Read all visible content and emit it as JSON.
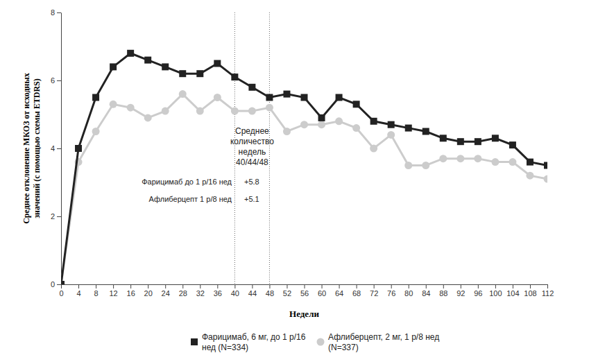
{
  "chart_data": {
    "type": "line",
    "x_label": "Недели",
    "y_label": "Среднее отклонение МКОЗ от исходных значений (с помощью схемы ETDRS)",
    "x": [
      0,
      4,
      8,
      12,
      16,
      20,
      24,
      28,
      32,
      36,
      40,
      44,
      48,
      52,
      56,
      60,
      64,
      68,
      72,
      76,
      80,
      84,
      88,
      92,
      96,
      100,
      104,
      108,
      112
    ],
    "series": [
      {
        "name": "Фарицимаб, 6 мг, до 1 р/16 нед (N=334)",
        "color": "#222222",
        "marker": "square",
        "values": [
          0,
          4.0,
          5.5,
          6.4,
          6.8,
          6.6,
          6.4,
          6.2,
          6.2,
          6.5,
          6.1,
          5.8,
          5.5,
          5.6,
          5.5,
          4.9,
          5.5,
          5.3,
          4.8,
          4.7,
          4.6,
          4.5,
          4.3,
          4.2,
          4.2,
          4.3,
          4.1,
          3.6,
          3.5
        ]
      },
      {
        "name": "Афлиберцепт, 2 мг, 1 р/8 нед (N=337)",
        "color": "#cccccc",
        "marker": "circle",
        "values": [
          0,
          3.6,
          4.5,
          5.3,
          5.2,
          4.9,
          5.1,
          5.6,
          5.1,
          5.5,
          5.1,
          5.1,
          5.2,
          4.5,
          4.7,
          4.7,
          4.8,
          4.6,
          4.0,
          4.4,
          3.5,
          3.5,
          3.7,
          3.7,
          3.7,
          3.6,
          3.6,
          3.2,
          3.1
        ]
      }
    ],
    "xlim": [
      0,
      112
    ],
    "xticks": [
      0,
      4,
      8,
      12,
      16,
      20,
      24,
      28,
      32,
      36,
      40,
      44,
      48,
      52,
      56,
      60,
      64,
      68,
      72,
      76,
      80,
      84,
      88,
      92,
      96,
      100,
      104,
      108,
      112
    ],
    "ylim": [
      0,
      8
    ],
    "yticks": [
      0,
      2,
      4,
      6,
      8
    ],
    "grid": false,
    "legend": "bottom",
    "vlines": [
      40,
      48
    ],
    "annotation": [
      "Среднее",
      "количество",
      "недель",
      "40/44/48"
    ],
    "summary": [
      {
        "label": "Фарицимаб до 1 р/16 нед",
        "value": "+5.8"
      },
      {
        "label": "Афлиберцепт 1 р/8 нед",
        "value": "+5.1"
      }
    ]
  }
}
